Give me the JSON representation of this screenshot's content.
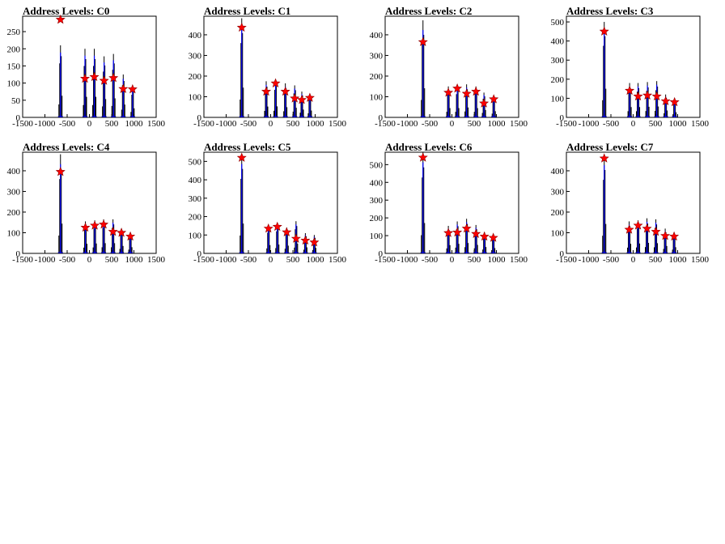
{
  "colors": {
    "histogram": "#000000",
    "peak_window": "#0000ff",
    "marker": "#ff0000",
    "frame": "#000000"
  },
  "chart_data": [
    {
      "type": "bar",
      "title": "Address Levels: C0",
      "xlabel": "",
      "ylabel": "",
      "xlim": [
        -1500,
        1500
      ],
      "ylim": [
        0,
        295
      ],
      "xticks": [
        -1500,
        -1000,
        -500,
        0,
        500,
        1000,
        1500
      ],
      "yticks": [
        0,
        50,
        100,
        150,
        200,
        250
      ],
      "peaks": [
        {
          "x": -650,
          "height": 210,
          "level": 285
        },
        {
          "x": -100,
          "height": 200,
          "level": 113
        },
        {
          "x": 110,
          "height": 200,
          "level": 118
        },
        {
          "x": 330,
          "height": 178,
          "level": 107
        },
        {
          "x": 540,
          "height": 185,
          "level": 115
        },
        {
          "x": 760,
          "height": 125,
          "level": 83
        },
        {
          "x": 970,
          "height": 88,
          "level": 82
        }
      ]
    },
    {
      "type": "bar",
      "title": "Address Levels: C1",
      "xlabel": "",
      "ylabel": "",
      "xlim": [
        -1500,
        1500
      ],
      "ylim": [
        0,
        490
      ],
      "xticks": [
        -1500,
        -1000,
        -500,
        0,
        500,
        1000,
        1500
      ],
      "yticks": [
        0,
        100,
        200,
        300,
        400
      ],
      "peaks": [
        {
          "x": -650,
          "height": 480,
          "level": 435
        },
        {
          "x": -100,
          "height": 175,
          "level": 125
        },
        {
          "x": 110,
          "height": 178,
          "level": 165
        },
        {
          "x": 330,
          "height": 165,
          "level": 125
        },
        {
          "x": 540,
          "height": 155,
          "level": 92
        },
        {
          "x": 700,
          "height": 125,
          "level": 85
        },
        {
          "x": 880,
          "height": 110,
          "level": 95
        }
      ]
    },
    {
      "type": "bar",
      "title": "Address Levels: C2",
      "xlabel": "",
      "ylabel": "",
      "xlim": [
        -1500,
        1500
      ],
      "ylim": [
        0,
        490
      ],
      "xticks": [
        -1500,
        -1000,
        -500,
        0,
        500,
        1000,
        1500
      ],
      "yticks": [
        0,
        100,
        200,
        300,
        400
      ],
      "peaks": [
        {
          "x": -650,
          "height": 470,
          "level": 365
        },
        {
          "x": -80,
          "height": 150,
          "level": 120
        },
        {
          "x": 120,
          "height": 150,
          "level": 140
        },
        {
          "x": 330,
          "height": 160,
          "level": 115
        },
        {
          "x": 540,
          "height": 150,
          "level": 125
        },
        {
          "x": 720,
          "height": 120,
          "level": 68
        },
        {
          "x": 940,
          "height": 100,
          "level": 88
        }
      ]
    },
    {
      "type": "bar",
      "title": "Address Levels: C3",
      "xlabel": "",
      "ylabel": "",
      "xlim": [
        -1500,
        1500
      ],
      "ylim": [
        0,
        530
      ],
      "xticks": [
        -1500,
        -1000,
        -500,
        0,
        500,
        1000,
        1500
      ],
      "yticks": [
        0,
        100,
        200,
        300,
        400,
        500
      ],
      "peaks": [
        {
          "x": -650,
          "height": 500,
          "level": 450
        },
        {
          "x": -80,
          "height": 180,
          "level": 140
        },
        {
          "x": 110,
          "height": 180,
          "level": 110
        },
        {
          "x": 320,
          "height": 185,
          "level": 115
        },
        {
          "x": 530,
          "height": 190,
          "level": 110
        },
        {
          "x": 730,
          "height": 120,
          "level": 85
        },
        {
          "x": 930,
          "height": 90,
          "level": 80
        }
      ]
    },
    {
      "type": "bar",
      "title": "Address Levels: C4",
      "xlabel": "",
      "ylabel": "",
      "xlim": [
        -1500,
        1500
      ],
      "ylim": [
        0,
        490
      ],
      "xticks": [
        -1500,
        -1000,
        -500,
        0,
        500,
        1000,
        1500
      ],
      "yticks": [
        0,
        100,
        200,
        300,
        400
      ],
      "peaks": [
        {
          "x": -650,
          "height": 480,
          "level": 395
        },
        {
          "x": -90,
          "height": 155,
          "level": 125
        },
        {
          "x": 120,
          "height": 160,
          "level": 135
        },
        {
          "x": 320,
          "height": 165,
          "level": 140
        },
        {
          "x": 530,
          "height": 165,
          "level": 105
        },
        {
          "x": 720,
          "height": 120,
          "level": 100
        },
        {
          "x": 920,
          "height": 100,
          "level": 82
        }
      ]
    },
    {
      "type": "bar",
      "title": "Address Levels: C5",
      "xlabel": "",
      "ylabel": "",
      "xlim": [
        -1500,
        1500
      ],
      "ylim": [
        0,
        550
      ],
      "xticks": [
        -1500,
        -1000,
        -500,
        0,
        500,
        1000,
        1500
      ],
      "yticks": [
        0,
        100,
        200,
        300,
        400,
        500
      ],
      "peaks": [
        {
          "x": -650,
          "height": 540,
          "level": 520
        },
        {
          "x": -50,
          "height": 150,
          "level": 135
        },
        {
          "x": 150,
          "height": 160,
          "level": 145
        },
        {
          "x": 360,
          "height": 140,
          "level": 115
        },
        {
          "x": 570,
          "height": 175,
          "level": 80
        },
        {
          "x": 780,
          "height": 110,
          "level": 70
        },
        {
          "x": 980,
          "height": 100,
          "level": 60
        }
      ]
    },
    {
      "type": "bar",
      "title": "Address Levels: C6",
      "xlabel": "",
      "ylabel": "",
      "xlim": [
        -1500,
        1500
      ],
      "ylim": [
        0,
        570
      ],
      "xticks": [
        -1500,
        -1000,
        -500,
        0,
        500,
        1000,
        1500
      ],
      "yticks": [
        0,
        100,
        200,
        300,
        400,
        500
      ],
      "peaks": [
        {
          "x": -650,
          "height": 570,
          "level": 540
        },
        {
          "x": -80,
          "height": 155,
          "level": 115
        },
        {
          "x": 120,
          "height": 180,
          "level": 118
        },
        {
          "x": 330,
          "height": 195,
          "level": 140
        },
        {
          "x": 540,
          "height": 160,
          "level": 110
        },
        {
          "x": 730,
          "height": 120,
          "level": 95
        },
        {
          "x": 930,
          "height": 100,
          "level": 88
        }
      ]
    },
    {
      "type": "bar",
      "title": "Address Levels: C7",
      "xlabel": "",
      "ylabel": "",
      "xlim": [
        -1500,
        1500
      ],
      "ylim": [
        0,
        490
      ],
      "xticks": [
        -1500,
        -1000,
        -500,
        0,
        500,
        1000,
        1500
      ],
      "yticks": [
        0,
        100,
        200,
        300,
        400
      ],
      "peaks": [
        {
          "x": -650,
          "height": 475,
          "level": 460
        },
        {
          "x": -90,
          "height": 155,
          "level": 115
        },
        {
          "x": 110,
          "height": 160,
          "level": 135
        },
        {
          "x": 310,
          "height": 170,
          "level": 120
        },
        {
          "x": 510,
          "height": 165,
          "level": 105
        },
        {
          "x": 720,
          "height": 120,
          "level": 85
        },
        {
          "x": 920,
          "height": 100,
          "level": 82
        }
      ]
    }
  ]
}
